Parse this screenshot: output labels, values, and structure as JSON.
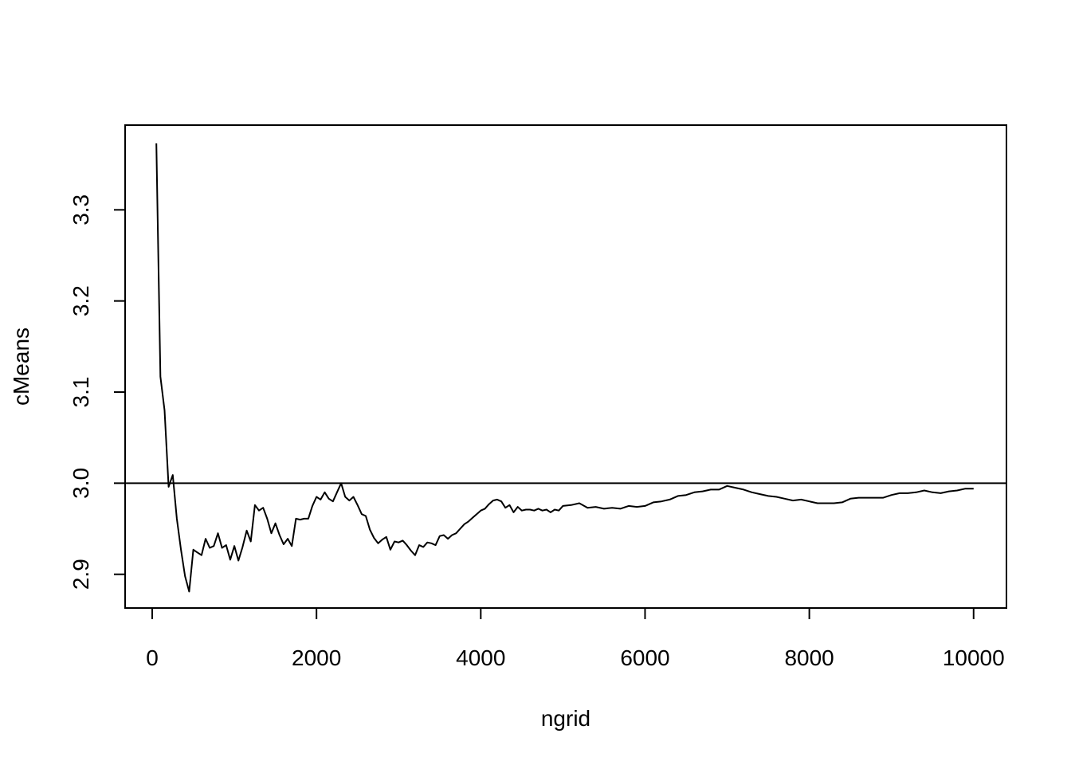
{
  "chart_data": {
    "type": "line",
    "title": "",
    "xlabel": "ngrid",
    "ylabel": "cMeans",
    "xlim": [
      -330,
      10400
    ],
    "ylim": [
      2.863,
      3.393
    ],
    "xticks": [
      0,
      2000,
      4000,
      6000,
      8000,
      10000
    ],
    "xtick_labels": [
      "0",
      "2000",
      "4000",
      "6000",
      "8000",
      "10000"
    ],
    "yticks": [
      2.9,
      3.0,
      3.1,
      3.2,
      3.3
    ],
    "ytick_labels": [
      "2.9",
      "3.0",
      "3.1",
      "3.2",
      "3.3"
    ],
    "grid": false,
    "legend": "none",
    "reference_line": {
      "orientation": "horizontal",
      "y": 3.0
    },
    "series": [
      {
        "color": "#000000",
        "x": [
          50,
          100,
          150,
          200,
          250,
          300,
          350,
          400,
          450,
          500,
          550,
          600,
          650,
          700,
          750,
          800,
          850,
          900,
          950,
          1000,
          1050,
          1100,
          1150,
          1200,
          1250,
          1300,
          1350,
          1400,
          1450,
          1500,
          1550,
          1600,
          1650,
          1700,
          1750,
          1800,
          1850,
          1900,
          1950,
          2000,
          2050,
          2100,
          2150,
          2200,
          2250,
          2300,
          2350,
          2400,
          2450,
          2500,
          2550,
          2600,
          2650,
          2700,
          2750,
          2800,
          2850,
          2900,
          2950,
          3000,
          3050,
          3100,
          3150,
          3200,
          3250,
          3300,
          3350,
          3400,
          3450,
          3500,
          3550,
          3600,
          3650,
          3700,
          3750,
          3800,
          3850,
          3900,
          3950,
          4000,
          4050,
          4100,
          4150,
          4200,
          4250,
          4300,
          4350,
          4400,
          4450,
          4500,
          4550,
          4600,
          4650,
          4700,
          4750,
          4800,
          4850,
          4900,
          4950,
          5000,
          5100,
          5200,
          5300,
          5400,
          5500,
          5600,
          5700,
          5800,
          5900,
          6000,
          6100,
          6200,
          6300,
          6400,
          6500,
          6600,
          6700,
          6800,
          6900,
          7000,
          7100,
          7200,
          7300,
          7400,
          7500,
          7600,
          7700,
          7800,
          7900,
          8000,
          8100,
          8200,
          8300,
          8400,
          8500,
          8600,
          8700,
          8800,
          8900,
          9000,
          9100,
          9200,
          9300,
          9400,
          9500,
          9600,
          9700,
          9800,
          9900,
          10000
        ],
        "y": [
          3.373,
          3.117,
          3.08,
          2.996,
          3.009,
          2.961,
          2.927,
          2.898,
          2.881,
          2.927,
          2.924,
          2.921,
          2.939,
          2.929,
          2.931,
          2.945,
          2.929,
          2.932,
          2.916,
          2.931,
          2.915,
          2.93,
          2.948,
          2.936,
          2.976,
          2.97,
          2.973,
          2.961,
          2.945,
          2.956,
          2.943,
          2.933,
          2.939,
          2.931,
          2.961,
          2.96,
          2.961,
          2.961,
          2.975,
          2.985,
          2.982,
          2.99,
          2.983,
          2.98,
          2.99,
          3.0,
          2.985,
          2.981,
          2.985,
          2.976,
          2.966,
          2.964,
          2.949,
          2.94,
          2.934,
          2.938,
          2.941,
          2.927,
          2.936,
          2.935,
          2.937,
          2.932,
          2.926,
          2.921,
          2.932,
          2.93,
          2.935,
          2.934,
          2.932,
          2.942,
          2.943,
          2.939,
          2.943,
          2.945,
          2.95,
          2.955,
          2.958,
          2.962,
          2.966,
          2.97,
          2.972,
          2.977,
          2.981,
          2.982,
          2.98,
          2.973,
          2.976,
          2.968,
          2.974,
          2.97,
          2.971,
          2.971,
          2.97,
          2.972,
          2.97,
          2.971,
          2.968,
          2.971,
          2.97,
          2.975,
          2.976,
          2.978,
          2.973,
          2.974,
          2.972,
          2.973,
          2.972,
          2.975,
          2.974,
          2.975,
          2.979,
          2.98,
          2.982,
          2.986,
          2.987,
          2.99,
          2.991,
          2.993,
          2.993,
          2.997,
          2.995,
          2.993,
          2.99,
          2.988,
          2.986,
          2.985,
          2.983,
          2.981,
          2.982,
          2.98,
          2.978,
          2.978,
          2.978,
          2.979,
          2.983,
          2.984,
          2.984,
          2.984,
          2.984,
          2.987,
          2.989,
          2.989,
          2.99,
          2.992,
          2.99,
          2.989,
          2.991,
          2.992,
          2.994,
          2.994
        ]
      }
    ]
  }
}
